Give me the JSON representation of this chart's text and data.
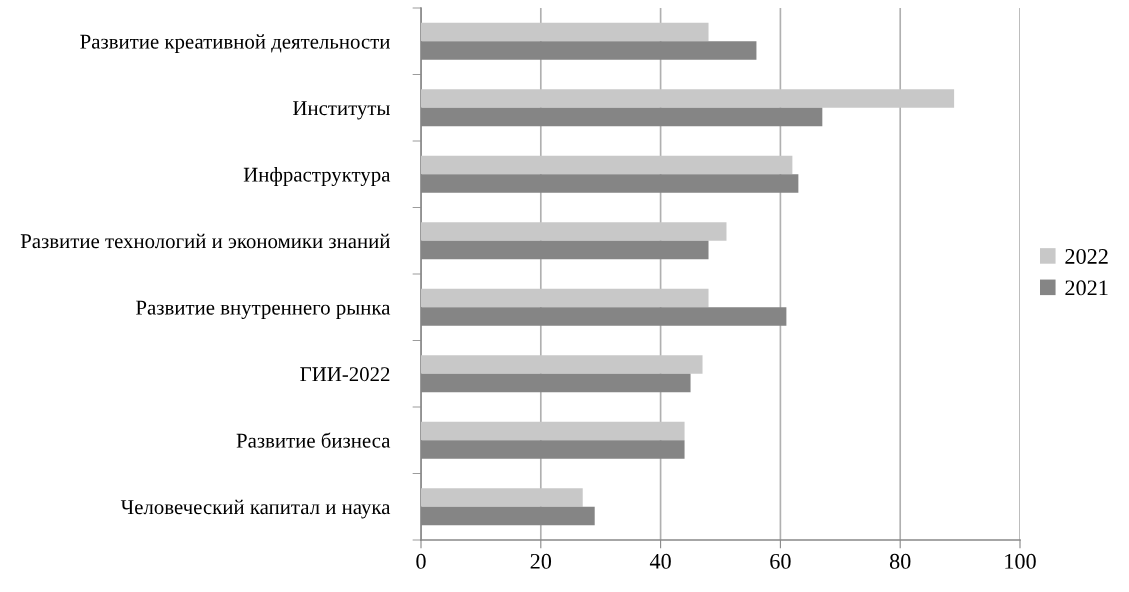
{
  "chart_data": {
    "type": "bar",
    "orientation": "horizontal",
    "categories": [
      "Развитие креативной деятельности",
      "Институты",
      "Инфраструктура",
      "Развитие технологий и экономики знаний",
      "Развитие внутреннего рынка",
      "ГИИ-2022",
      "Развитие бизнеса",
      "Человеческий капитал и наука"
    ],
    "series": [
      {
        "name": "2022",
        "color": "#c8c8c8",
        "values": [
          48,
          89,
          62,
          51,
          48,
          47,
          44,
          27
        ]
      },
      {
        "name": "2021",
        "color": "#858585",
        "values": [
          56,
          67,
          63,
          48,
          61,
          45,
          44,
          29
        ]
      }
    ],
    "xlim": [
      0,
      100
    ],
    "xticks": [
      0,
      20,
      40,
      60,
      80,
      100
    ],
    "grid": "x",
    "legend": "right"
  }
}
